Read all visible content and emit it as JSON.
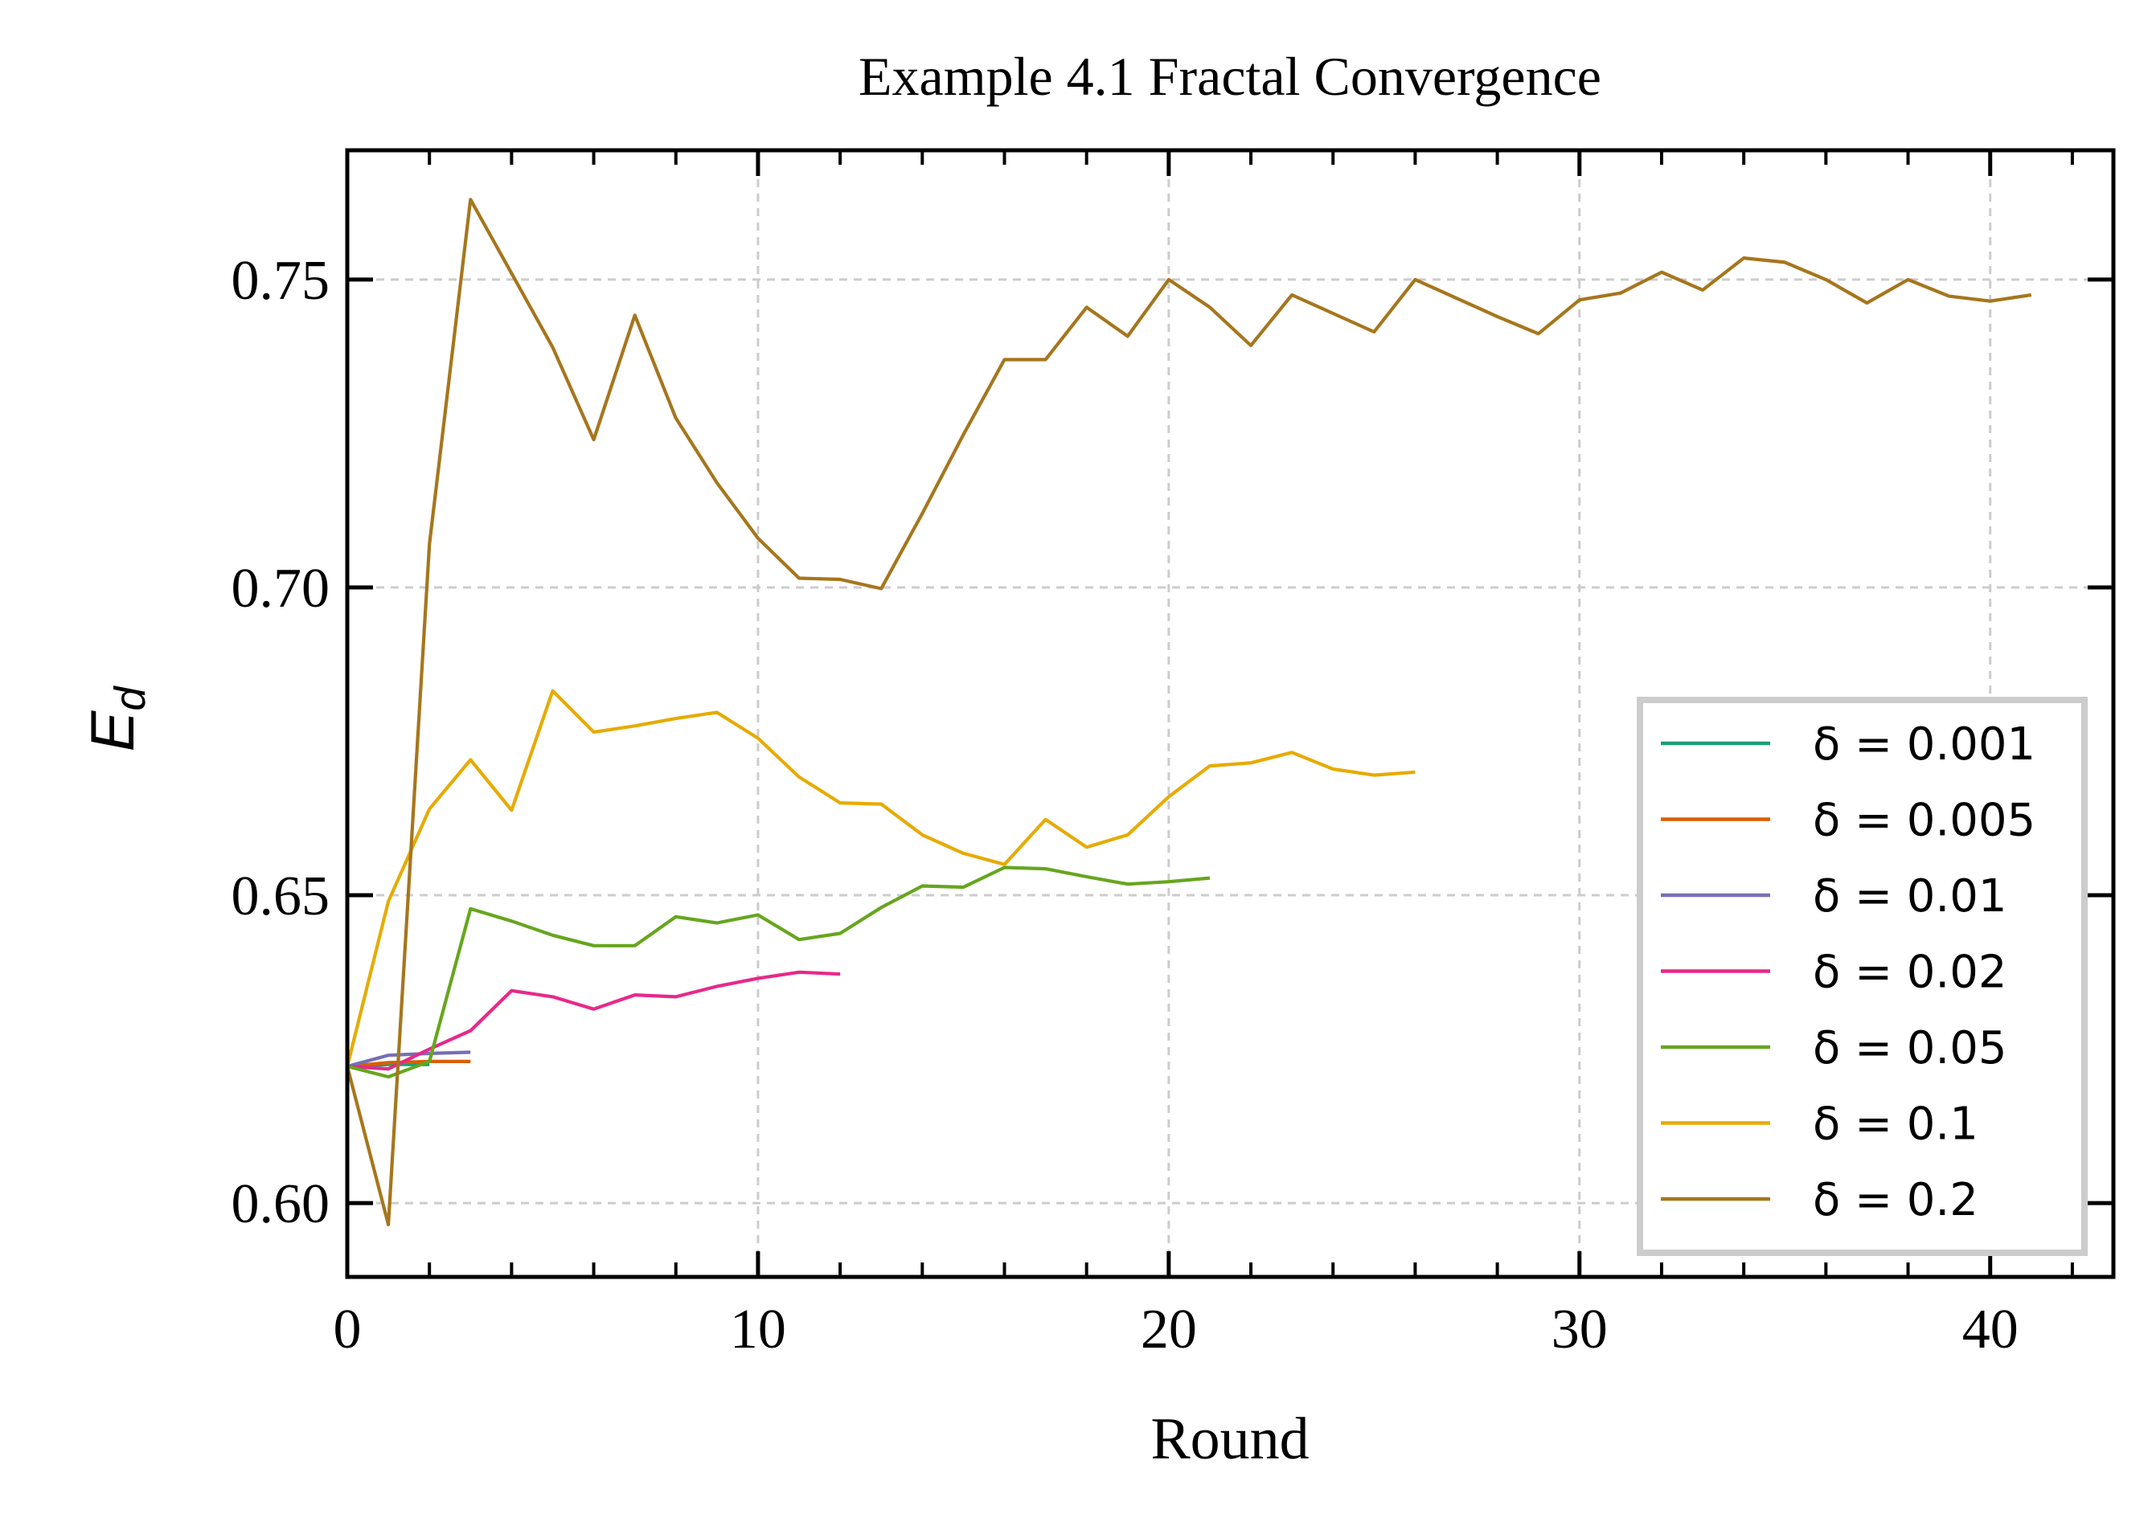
{
  "chart_data": {
    "type": "line",
    "title": "Example 4.1 Fractal Convergence",
    "xlabel": "Round",
    "ylabel_main": "E",
    "ylabel_sub": "d",
    "xlim": [
      0,
      43
    ],
    "ylim": [
      0.588,
      0.771
    ],
    "xticks": [
      0,
      10,
      20,
      30,
      40
    ],
    "yticks": [
      0.6,
      0.65,
      0.7,
      0.75
    ],
    "xtick_labels": [
      "0",
      "10",
      "20",
      "30",
      "40"
    ],
    "ytick_labels": [
      "0.60",
      "0.65",
      "0.70",
      "0.75"
    ],
    "grid": true,
    "legend_position": "bottom-right",
    "series": [
      {
        "name": "δ = 0.001",
        "color": "#1b9e77",
        "x": [
          0,
          1,
          2
        ],
        "y": [
          0.6222,
          0.6225,
          0.6225
        ]
      },
      {
        "name": "δ = 0.005",
        "color": "#d95f02",
        "x": [
          0,
          1,
          2,
          3
        ],
        "y": [
          0.6222,
          0.6228,
          0.623,
          0.623
        ]
      },
      {
        "name": "δ = 0.01",
        "color": "#7570b3",
        "x": [
          0,
          1,
          2,
          3
        ],
        "y": [
          0.6222,
          0.624,
          0.6243,
          0.6245
        ]
      },
      {
        "name": "δ = 0.02",
        "color": "#e7298a",
        "x": [
          0,
          1,
          2,
          3,
          4,
          5,
          6,
          7,
          8,
          9,
          10,
          11,
          12
        ],
        "y": [
          0.6222,
          0.6218,
          0.625,
          0.628,
          0.6345,
          0.6335,
          0.6315,
          0.6338,
          0.6335,
          0.6352,
          0.6365,
          0.6375,
          0.6372
        ]
      },
      {
        "name": "δ = 0.05",
        "color": "#66a61e",
        "x": [
          0,
          1,
          2,
          3,
          4,
          5,
          6,
          7,
          8,
          9,
          10,
          11,
          12,
          13,
          14,
          15,
          16,
          17,
          18,
          19,
          20,
          21
        ],
        "y": [
          0.6222,
          0.6205,
          0.623,
          0.6478,
          0.6458,
          0.6435,
          0.6418,
          0.6418,
          0.6465,
          0.6455,
          0.6468,
          0.6428,
          0.6438,
          0.648,
          0.6515,
          0.6513,
          0.6545,
          0.6543,
          0.653,
          0.6518,
          0.6522,
          0.6528
        ]
      },
      {
        "name": "δ = 0.1",
        "color": "#e6ab02",
        "x": [
          0,
          1,
          2,
          3,
          4,
          5,
          6,
          7,
          8,
          9,
          10,
          11,
          12,
          13,
          14,
          15,
          16,
          17,
          18,
          19,
          20,
          21,
          22,
          23,
          24,
          25,
          26
        ],
        "y": [
          0.6222,
          0.649,
          0.664,
          0.672,
          0.6638,
          0.6832,
          0.6765,
          0.6775,
          0.6787,
          0.6797,
          0.6755,
          0.6692,
          0.665,
          0.6648,
          0.6598,
          0.6568,
          0.655,
          0.6623,
          0.6578,
          0.6598,
          0.666,
          0.671,
          0.6715,
          0.6732,
          0.6705,
          0.6695,
          0.67
        ]
      },
      {
        "name": "δ = 0.2",
        "color": "#a6761d",
        "x": [
          0,
          1,
          2,
          3,
          4,
          5,
          6,
          7,
          8,
          9,
          10,
          11,
          12,
          13,
          14,
          15,
          16,
          17,
          18,
          19,
          20,
          21,
          22,
          23,
          24,
          25,
          26,
          27,
          28,
          29,
          30,
          31,
          32,
          33,
          34,
          35,
          36,
          37,
          38,
          39,
          40,
          41
        ],
        "y": [
          0.6222,
          0.5965,
          0.707,
          0.763,
          0.751,
          0.739,
          0.724,
          0.7442,
          0.7275,
          0.717,
          0.708,
          0.7015,
          0.7013,
          0.6998,
          0.712,
          0.7248,
          0.737,
          0.737,
          0.7455,
          0.7408,
          0.75,
          0.7455,
          0.7393,
          0.7475,
          0.7445,
          0.7415,
          0.75,
          0.747,
          0.744,
          0.7412,
          0.7467,
          0.7478,
          0.7512,
          0.7483,
          0.7535,
          0.7528,
          0.75,
          0.7462,
          0.75,
          0.7473,
          0.7465,
          0.7475
        ]
      }
    ]
  }
}
